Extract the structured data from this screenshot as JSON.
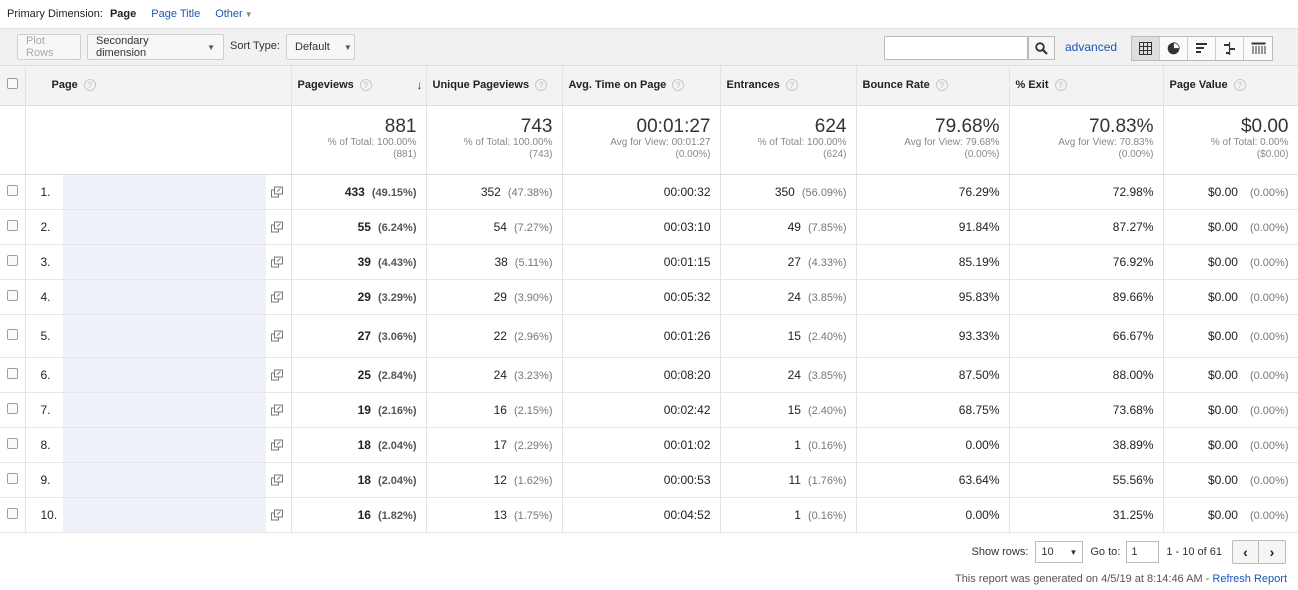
{
  "primary_dimension": {
    "label": "Primary Dimension:",
    "items": [
      {
        "label": "Page",
        "active": true
      },
      {
        "label": "Page Title",
        "active": false
      },
      {
        "label": "Other",
        "active": false
      }
    ]
  },
  "toolbar": {
    "plot_rows": "Plot Rows",
    "secondary_dimension": "Secondary dimension",
    "sort_type_label": "Sort Type:",
    "sort_type_value": "Default",
    "search_value": "",
    "advanced": "advanced",
    "view_icons": [
      "table-icon",
      "pie-icon",
      "performance-icon",
      "comparison-icon",
      "pivot-icon"
    ]
  },
  "table": {
    "headers": {
      "page": "Page",
      "pageviews": "Pageviews",
      "unique_pageviews": "Unique Pageviews",
      "avg_time": "Avg. Time on Page",
      "entrances": "Entrances",
      "bounce_rate": "Bounce Rate",
      "exit": "% Exit",
      "page_value": "Page Value"
    },
    "totals": {
      "pageviews": {
        "big": "881",
        "sub": "% of Total: 100.00%",
        "sub2": "(881)"
      },
      "unique_pageviews": {
        "big": "743",
        "sub": "% of Total: 100.00%",
        "sub2": "(743)"
      },
      "avg_time": {
        "big": "00:01:27",
        "sub": "Avg for View: 00:01:27",
        "sub2": "(0.00%)"
      },
      "entrances": {
        "big": "624",
        "sub": "% of Total: 100.00%",
        "sub2": "(624)"
      },
      "bounce_rate": {
        "big": "79.68%",
        "sub": "Avg for View: 79.68%",
        "sub2": "(0.00%)"
      },
      "exit": {
        "big": "70.83%",
        "sub": "Avg for View: 70.83%",
        "sub2": "(0.00%)"
      },
      "page_value": {
        "big": "$0.00",
        "sub": "% of Total: 0.00%",
        "sub2": "($0.00)"
      }
    },
    "rows": [
      {
        "num": "1.",
        "pv": "433",
        "pv_pct": "(49.15%)",
        "upv": "352",
        "upv_pct": "(47.38%)",
        "time": "00:00:32",
        "ent": "350",
        "ent_pct": "(56.09%)",
        "bounce": "76.29%",
        "exit": "72.98%",
        "value": "$0.00",
        "value_pct": "(0.00%)"
      },
      {
        "num": "2.",
        "pv": "55",
        "pv_pct": "(6.24%)",
        "upv": "54",
        "upv_pct": "(7.27%)",
        "time": "00:03:10",
        "ent": "49",
        "ent_pct": "(7.85%)",
        "bounce": "91.84%",
        "exit": "87.27%",
        "value": "$0.00",
        "value_pct": "(0.00%)"
      },
      {
        "num": "3.",
        "pv": "39",
        "pv_pct": "(4.43%)",
        "upv": "38",
        "upv_pct": "(5.11%)",
        "time": "00:01:15",
        "ent": "27",
        "ent_pct": "(4.33%)",
        "bounce": "85.19%",
        "exit": "76.92%",
        "value": "$0.00",
        "value_pct": "(0.00%)"
      },
      {
        "num": "4.",
        "pv": "29",
        "pv_pct": "(3.29%)",
        "upv": "29",
        "upv_pct": "(3.90%)",
        "time": "00:05:32",
        "ent": "24",
        "ent_pct": "(3.85%)",
        "bounce": "95.83%",
        "exit": "89.66%",
        "value": "$0.00",
        "value_pct": "(0.00%)"
      },
      {
        "num": "5.",
        "pv": "27",
        "pv_pct": "(3.06%)",
        "upv": "22",
        "upv_pct": "(2.96%)",
        "time": "00:01:26",
        "ent": "15",
        "ent_pct": "(2.40%)",
        "bounce": "93.33%",
        "exit": "66.67%",
        "value": "$0.00",
        "value_pct": "(0.00%)"
      },
      {
        "num": "6.",
        "pv": "25",
        "pv_pct": "(2.84%)",
        "upv": "24",
        "upv_pct": "(3.23%)",
        "time": "00:08:20",
        "ent": "24",
        "ent_pct": "(3.85%)",
        "bounce": "87.50%",
        "exit": "88.00%",
        "value": "$0.00",
        "value_pct": "(0.00%)"
      },
      {
        "num": "7.",
        "pv": "19",
        "pv_pct": "(2.16%)",
        "upv": "16",
        "upv_pct": "(2.15%)",
        "time": "00:02:42",
        "ent": "15",
        "ent_pct": "(2.40%)",
        "bounce": "68.75%",
        "exit": "73.68%",
        "value": "$0.00",
        "value_pct": "(0.00%)"
      },
      {
        "num": "8.",
        "pv": "18",
        "pv_pct": "(2.04%)",
        "upv": "17",
        "upv_pct": "(2.29%)",
        "time": "00:01:02",
        "ent": "1",
        "ent_pct": "(0.16%)",
        "bounce": "0.00%",
        "exit": "38.89%",
        "value": "$0.00",
        "value_pct": "(0.00%)"
      },
      {
        "num": "9.",
        "pv": "18",
        "pv_pct": "(2.04%)",
        "upv": "12",
        "upv_pct": "(1.62%)",
        "time": "00:00:53",
        "ent": "11",
        "ent_pct": "(1.76%)",
        "bounce": "63.64%",
        "exit": "55.56%",
        "value": "$0.00",
        "value_pct": "(0.00%)"
      },
      {
        "num": "10.",
        "pv": "16",
        "pv_pct": "(1.82%)",
        "upv": "13",
        "upv_pct": "(1.75%)",
        "time": "00:04:52",
        "ent": "1",
        "ent_pct": "(0.16%)",
        "bounce": "0.00%",
        "exit": "31.25%",
        "value": "$0.00",
        "value_pct": "(0.00%)"
      }
    ]
  },
  "footer": {
    "show_rows_label": "Show rows:",
    "show_rows_value": "10",
    "goto_label": "Go to:",
    "goto_value": "1",
    "range": "1 - 10 of 61",
    "report_note": "This report was generated on 4/5/19 at 8:14:46 AM - ",
    "refresh_link": "Refresh Report"
  }
}
